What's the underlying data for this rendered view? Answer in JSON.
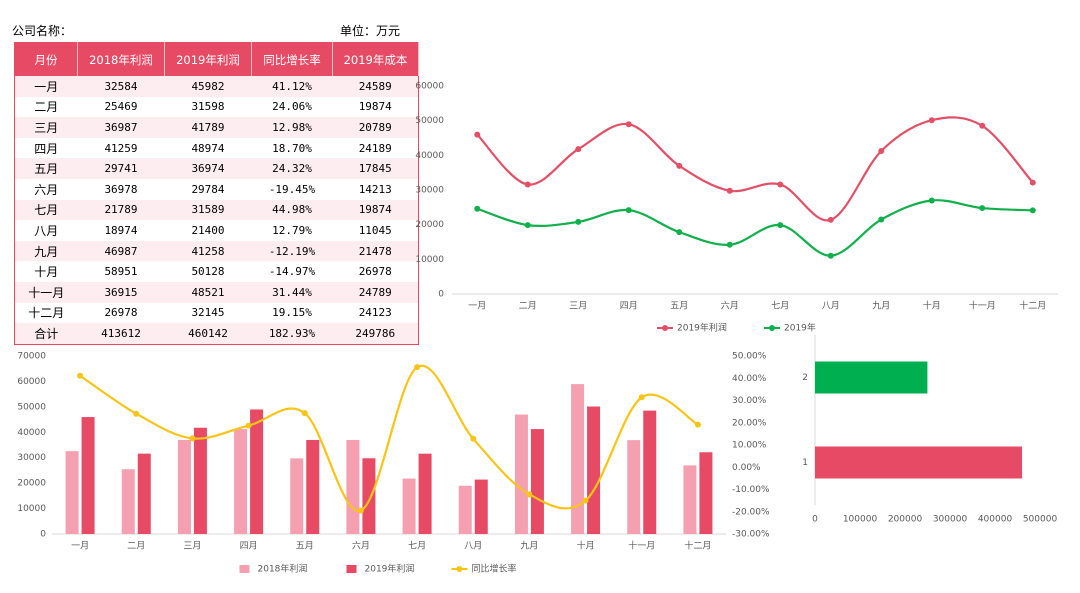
{
  "header": {
    "company": "公司名称：",
    "unit": "单位：万元"
  },
  "table": {
    "columns": [
      "月份",
      "2018年利润",
      "2019年利润",
      "同比增长率",
      "2019年成本"
    ],
    "rows": [
      [
        "一月",
        32584,
        45982,
        "41.12%",
        24589
      ],
      [
        "二月",
        25469,
        31598,
        "24.06%",
        19874
      ],
      [
        "三月",
        36987,
        41789,
        "12.98%",
        20789
      ],
      [
        "四月",
        41259,
        48974,
        "18.70%",
        24189
      ],
      [
        "五月",
        29741,
        36974,
        "24.32%",
        17845
      ],
      [
        "六月",
        36978,
        29784,
        "-19.45%",
        14213
      ],
      [
        "七月",
        21789,
        31589,
        "44.98%",
        19874
      ],
      [
        "八月",
        18974,
        21400,
        "12.79%",
        11045
      ],
      [
        "九月",
        46987,
        41258,
        "-12.19%",
        21478
      ],
      [
        "十月",
        58951,
        50128,
        "-14.97%",
        26978
      ],
      [
        "十一月",
        36915,
        48521,
        "31.44%",
        24789
      ],
      [
        "十二月",
        26978,
        32145,
        "19.15%",
        24123
      ],
      [
        "合计",
        413612,
        460142,
        "182.93%",
        249786
      ]
    ]
  },
  "chart_data": [
    {
      "type": "line",
      "categories": [
        "一月",
        "二月",
        "三月",
        "四月",
        "五月",
        "六月",
        "七月",
        "八月",
        "九月",
        "十月",
        "十一月",
        "十二月"
      ],
      "series": [
        {
          "name": "2019年利润",
          "color": "#e25068",
          "values": [
            45982,
            31598,
            41789,
            48974,
            36974,
            29784,
            31589,
            21400,
            41258,
            50128,
            48521,
            32145
          ]
        },
        {
          "name": "2019年",
          "color": "#12b04c",
          "values": [
            24589,
            19874,
            20789,
            24189,
            17845,
            14213,
            19874,
            11045,
            21478,
            26978,
            24789,
            24123
          ]
        }
      ],
      "ylim": [
        0,
        60000
      ],
      "yticks": [
        0,
        10000,
        20000,
        30000,
        40000,
        50000,
        60000
      ],
      "smooth": true,
      "legend": "bottom"
    },
    {
      "type": "combo",
      "categories": [
        "一月",
        "二月",
        "三月",
        "四月",
        "五月",
        "六月",
        "七月",
        "八月",
        "九月",
        "十月",
        "十一月",
        "十二月"
      ],
      "series": [
        {
          "name": "2018年利润",
          "color": "#f4a0b0",
          "kind": "bar",
          "values": [
            32584,
            25469,
            36987,
            41259,
            29741,
            36978,
            21789,
            18974,
            46987,
            58951,
            36915,
            26978
          ]
        },
        {
          "name": "2019年利润",
          "color": "#e64a64",
          "kind": "bar",
          "values": [
            45982,
            31598,
            41789,
            48974,
            36974,
            29784,
            31589,
            21400,
            41258,
            50128,
            48521,
            32145
          ]
        },
        {
          "name": "同比增长率",
          "color": "#f7c417",
          "kind": "line",
          "axis": "y2",
          "values": [
            41.12,
            24.06,
            12.98,
            18.7,
            24.32,
            -19.45,
            44.98,
            12.79,
            -12.19,
            -14.97,
            31.44,
            19.15
          ]
        }
      ],
      "ylim": [
        0,
        70000
      ],
      "yticks": [
        0,
        10000,
        20000,
        30000,
        40000,
        50000,
        60000,
        70000
      ],
      "y2lim": [
        -30,
        50
      ],
      "y2ticks": [
        {
          "value": -30,
          "label": "-30.00%"
        },
        {
          "value": -20,
          "label": "-20.00%"
        },
        {
          "value": -10,
          "label": "-10.00%"
        },
        {
          "value": 0,
          "label": "0.00%"
        },
        {
          "value": 10,
          "label": "10.00%"
        },
        {
          "value": 20,
          "label": "20.00%"
        },
        {
          "value": 30,
          "label": "30.00%"
        },
        {
          "value": 40,
          "label": "40.00%"
        },
        {
          "value": 50,
          "label": "50.00%"
        }
      ],
      "smooth": true,
      "legend": "bottom"
    },
    {
      "type": "barh",
      "categories": [
        "1",
        "2"
      ],
      "values": [
        460142,
        249786
      ],
      "colors": [
        "#e64a64",
        "#00b050"
      ],
      "xlim": [
        0,
        500000
      ],
      "xticks": [
        0,
        100000,
        200000,
        300000,
        400000,
        500000
      ]
    }
  ]
}
